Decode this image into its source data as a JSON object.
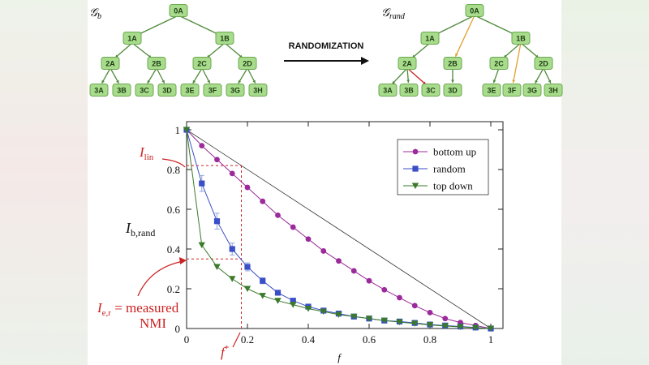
{
  "trees": {
    "left_title": "𝒢",
    "left_sub": "b",
    "right_title": "𝒢",
    "right_sub": "rand",
    "arrow_label": "RANDOMIZATION",
    "nodes": {
      "n0A": "0A",
      "n1A": "1A",
      "n1B": "1B",
      "n2A": "2A",
      "n2B": "2B",
      "n2C": "2C",
      "n2D": "2D",
      "n3A": "3A",
      "n3B": "3B",
      "n3C": "3C",
      "n3D": "3D",
      "n3E": "3E",
      "n3F": "3F",
      "n3G": "3G",
      "n3H": "3H"
    },
    "edge_colors": {
      "normal": "#4f8a3a",
      "moved_orange": "#e0a030",
      "moved_red": "#cc2222"
    }
  },
  "annotations": {
    "i_lin": "I",
    "i_lin_sub": "lin",
    "ylabel_main": "I",
    "ylabel_sub": "b,rand",
    "ier_main": "I",
    "ier_sub": "e,r",
    "ier_text": " = measured",
    "ier_text2": "NMI",
    "fstar": "f",
    "fstar_sup": "*",
    "xlabel": "f",
    "color": "#cc2222"
  },
  "chart_data": {
    "type": "line",
    "xlabel": "f",
    "ylabel": "I_b,rand",
    "xlim": [
      0,
      1
    ],
    "ylim": [
      0,
      1
    ],
    "xticks": [
      "0",
      "0.2",
      "0.4",
      "0.6",
      "0.8",
      "1"
    ],
    "yticks": [
      "0",
      "0.2",
      "0.4",
      "0.6",
      "0.8",
      "1"
    ],
    "legend_position": "top-right",
    "linear_reference": {
      "x": [
        0,
        1
      ],
      "y": [
        1,
        0
      ]
    },
    "series": [
      {
        "name": "bottom up",
        "color": "#9b2a9b",
        "marker": "circle",
        "x": [
          0,
          0.05,
          0.1,
          0.15,
          0.2,
          0.25,
          0.3,
          0.35,
          0.4,
          0.45,
          0.5,
          0.55,
          0.6,
          0.65,
          0.7,
          0.75,
          0.8,
          0.85,
          0.9,
          0.95,
          1
        ],
        "y": [
          1,
          0.92,
          0.85,
          0.78,
          0.71,
          0.64,
          0.57,
          0.51,
          0.45,
          0.39,
          0.34,
          0.29,
          0.24,
          0.195,
          0.155,
          0.115,
          0.08,
          0.05,
          0.03,
          0.015,
          0
        ]
      },
      {
        "name": "random",
        "color": "#3a4ec8",
        "marker": "square",
        "x": [
          0,
          0.05,
          0.1,
          0.15,
          0.2,
          0.25,
          0.3,
          0.35,
          0.4,
          0.45,
          0.5,
          0.55,
          0.6,
          0.65,
          0.7,
          0.75,
          0.8,
          0.85,
          0.9,
          0.95,
          1
        ],
        "y": [
          1,
          0.73,
          0.54,
          0.4,
          0.31,
          0.24,
          0.18,
          0.14,
          0.11,
          0.09,
          0.075,
          0.06,
          0.05,
          0.04,
          0.035,
          0.028,
          0.02,
          0.015,
          0.01,
          0.005,
          0
        ],
        "err": [
          0,
          0.04,
          0.04,
          0.03,
          0.02,
          0.015,
          0.01,
          0.008,
          0.007,
          0.006,
          0.005,
          0.005,
          0.004,
          0.004,
          0.003,
          0.003,
          0.003,
          0.002,
          0.002,
          0.002,
          0
        ]
      },
      {
        "name": "top down",
        "color": "#3a7a2a",
        "marker": "triangle-down",
        "x": [
          0,
          0.05,
          0.1,
          0.15,
          0.2,
          0.25,
          0.3,
          0.35,
          0.4,
          0.45,
          0.5,
          0.55,
          0.6,
          0.65,
          0.7,
          0.75,
          0.8,
          0.85,
          0.9,
          0.95,
          1
        ],
        "y": [
          1,
          0.42,
          0.31,
          0.25,
          0.2,
          0.165,
          0.14,
          0.12,
          0.1,
          0.085,
          0.07,
          0.06,
          0.05,
          0.04,
          0.032,
          0.025,
          0.018,
          0.012,
          0.008,
          0.004,
          0
        ]
      }
    ],
    "i_lin_level": 0.82,
    "i_er_level": 0.35,
    "f_star": 0.18
  }
}
